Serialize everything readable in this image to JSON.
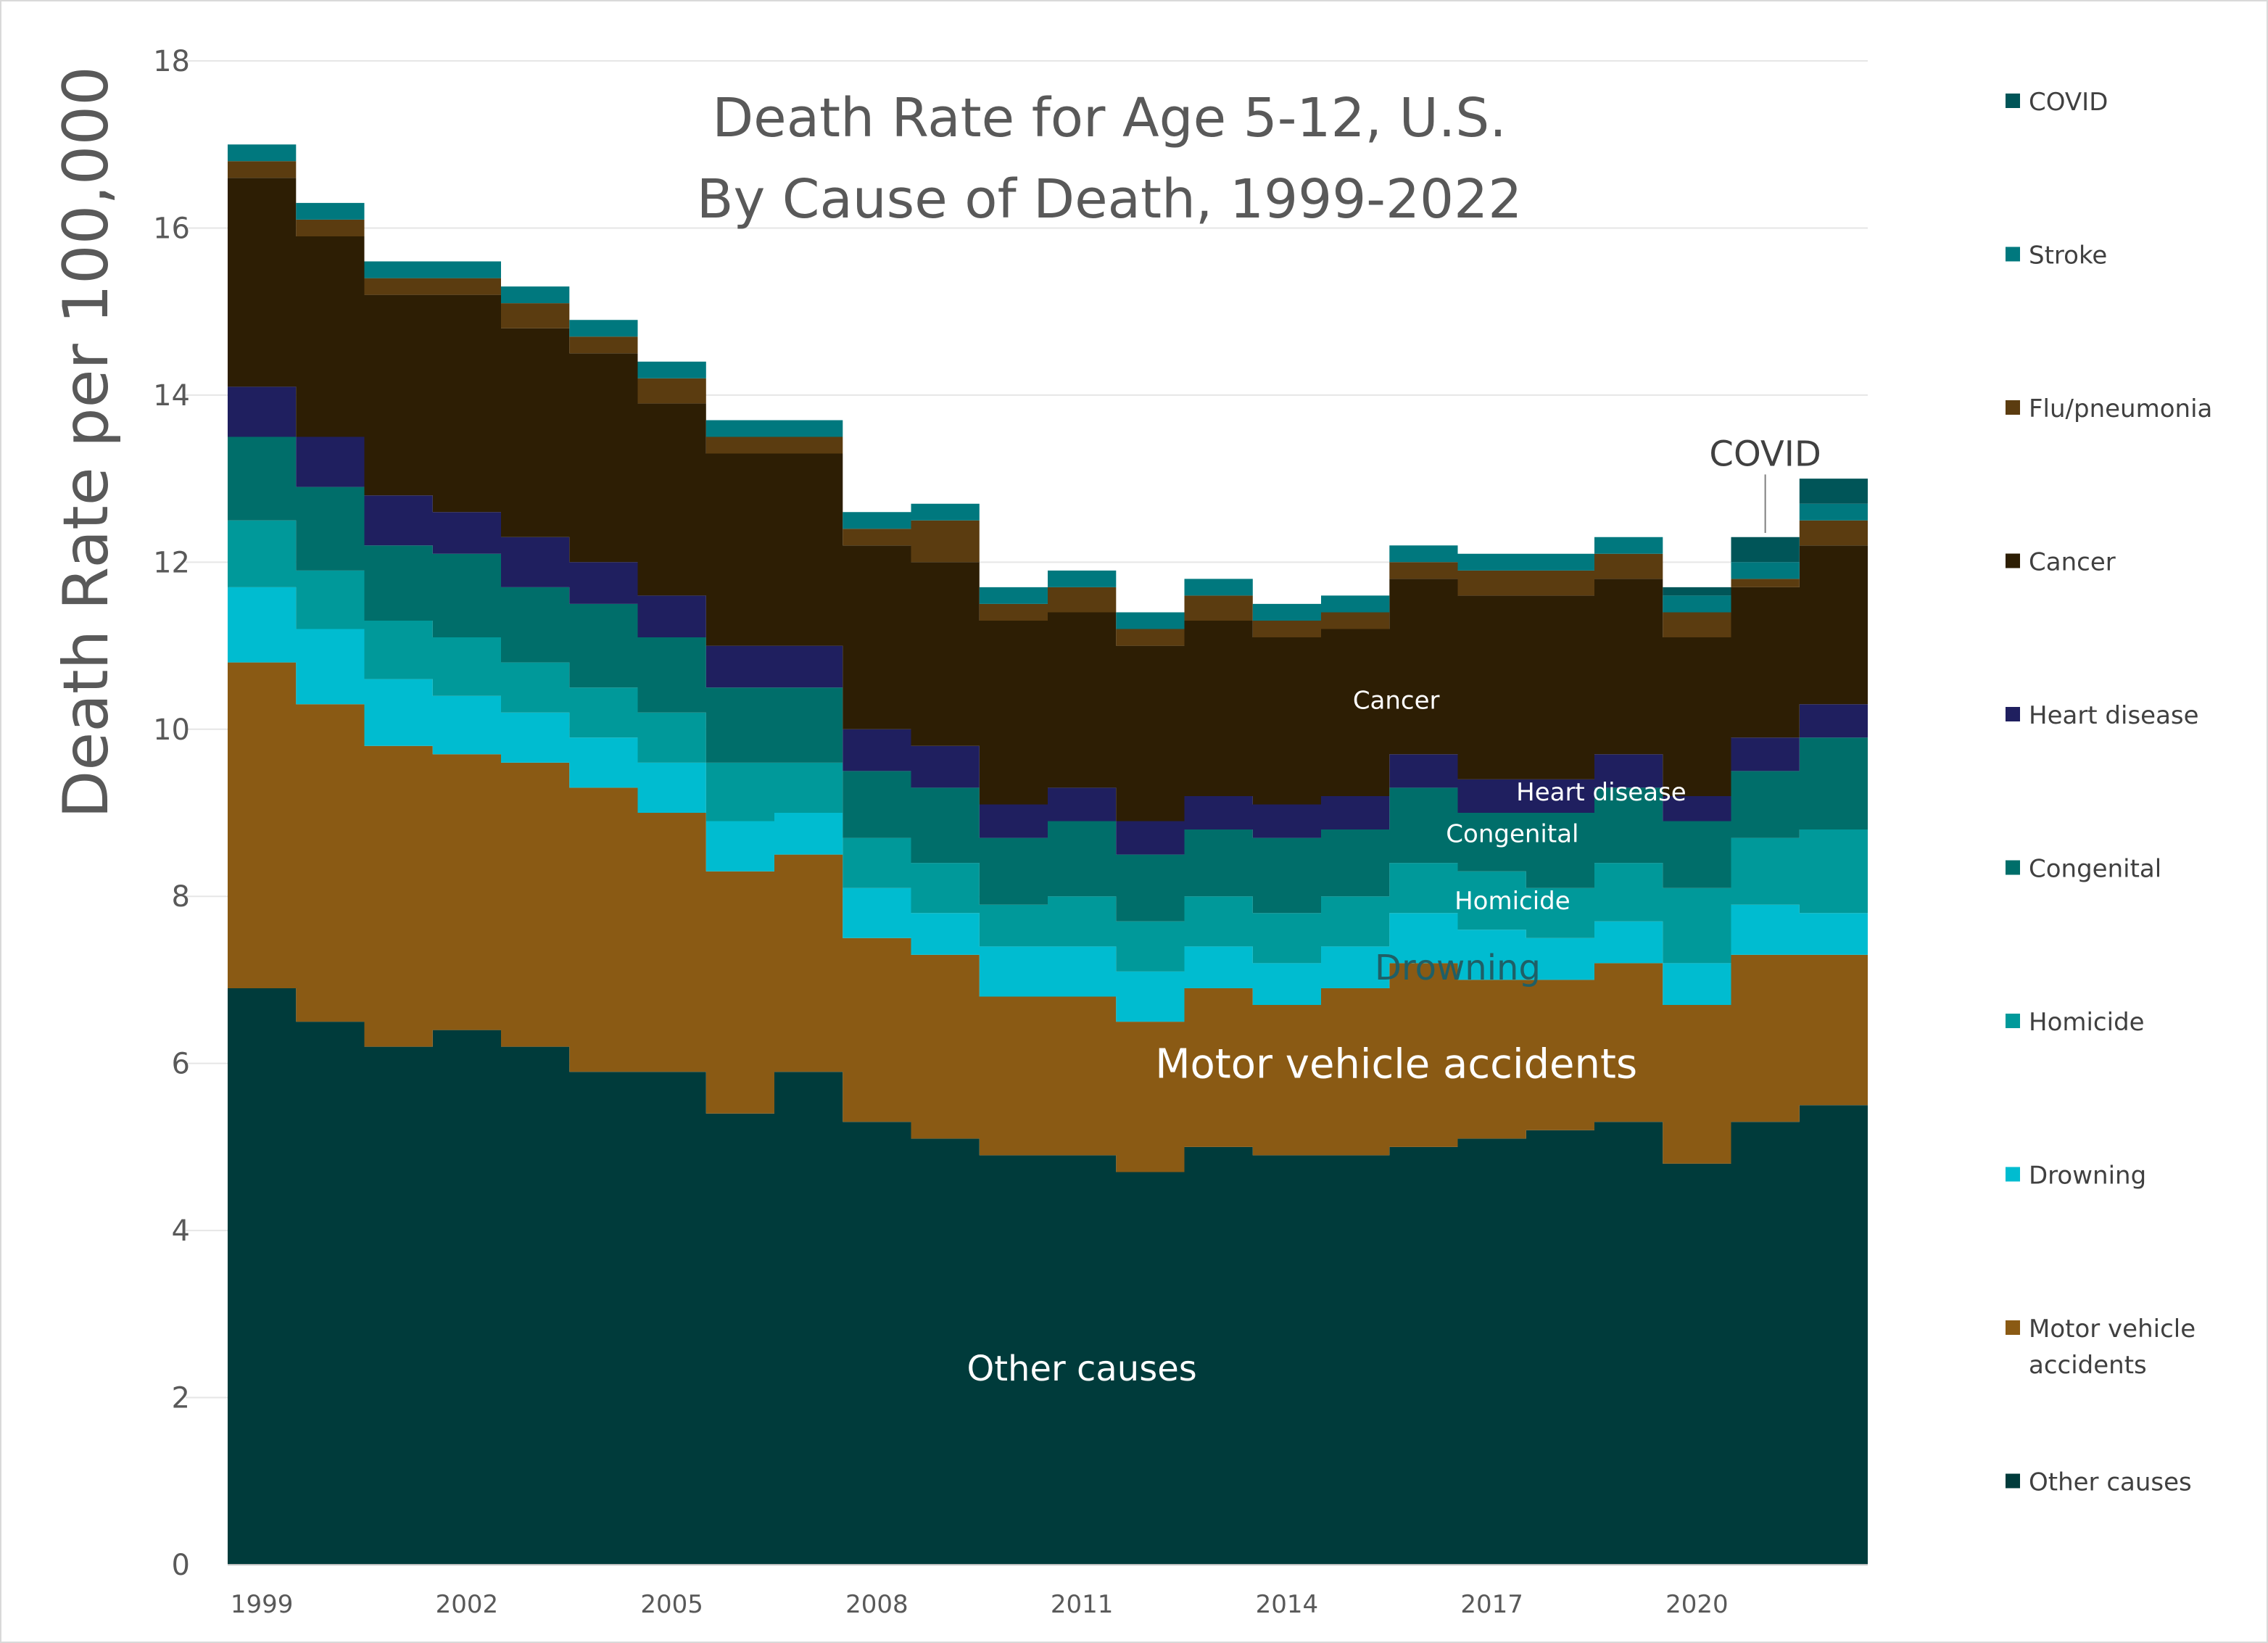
{
  "chart_data": {
    "type": "area",
    "stacked": true,
    "step": true,
    "title_lines": [
      "Death Rate for Age 5-12, U.S.",
      "By Cause of Death, 1999-2022"
    ],
    "ylabel": "Death Rate per 100,000",
    "xlabel": "",
    "ylim": [
      0,
      18
    ],
    "y_ticks": [
      "0",
      "2",
      "4",
      "6",
      "8",
      "10",
      "12",
      "14",
      "16",
      "18"
    ],
    "x_tick_labels": [
      "1999",
      "2002",
      "2005",
      "2008",
      "2011",
      "2014",
      "2017",
      "2020"
    ],
    "x": [
      1999,
      2000,
      2001,
      2002,
      2003,
      2004,
      2005,
      2006,
      2007,
      2008,
      2009,
      2010,
      2011,
      2012,
      2013,
      2014,
      2015,
      2016,
      2017,
      2018,
      2019,
      2020,
      2021,
      2022
    ],
    "grid": true,
    "legend_position": "right",
    "series": [
      {
        "name": "Other causes",
        "key": "other",
        "color": "#003b3b",
        "values": [
          6.9,
          6.5,
          6.2,
          6.4,
          6.2,
          5.9,
          5.9,
          5.4,
          5.9,
          5.3,
          5.1,
          4.9,
          4.9,
          4.7,
          5.0,
          4.9,
          4.9,
          5.0,
          5.1,
          5.2,
          5.3,
          4.8,
          5.3,
          5.5
        ]
      },
      {
        "name": "Motor vehicle accidents",
        "key": "mva",
        "color": "#8a5a14",
        "values": [
          3.9,
          3.8,
          3.6,
          3.3,
          3.4,
          3.4,
          3.1,
          2.9,
          2.6,
          2.2,
          2.2,
          1.9,
          1.9,
          1.8,
          1.9,
          1.8,
          2.0,
          2.2,
          1.9,
          1.8,
          1.9,
          1.9,
          2.0,
          1.8
        ]
      },
      {
        "name": "Drowning",
        "key": "drowning",
        "color": "#00bcd0",
        "values": [
          0.9,
          0.9,
          0.8,
          0.7,
          0.6,
          0.6,
          0.6,
          0.6,
          0.5,
          0.6,
          0.5,
          0.6,
          0.6,
          0.6,
          0.5,
          0.5,
          0.5,
          0.6,
          0.6,
          0.5,
          0.5,
          0.5,
          0.6,
          0.5
        ]
      },
      {
        "name": "Homicide",
        "key": "homicide",
        "color": "#00999a",
        "values": [
          0.8,
          0.7,
          0.7,
          0.7,
          0.6,
          0.6,
          0.6,
          0.7,
          0.6,
          0.6,
          0.6,
          0.5,
          0.6,
          0.6,
          0.6,
          0.6,
          0.6,
          0.6,
          0.7,
          0.6,
          0.7,
          0.9,
          0.8,
          1.0
        ]
      },
      {
        "name": "Congenital",
        "key": "congenital",
        "color": "#006e6a",
        "values": [
          1.0,
          1.0,
          0.9,
          1.0,
          0.9,
          1.0,
          0.9,
          0.9,
          0.9,
          0.8,
          0.9,
          0.8,
          0.9,
          0.8,
          0.8,
          0.9,
          0.8,
          0.9,
          0.7,
          0.9,
          0.9,
          0.8,
          0.8,
          1.1
        ]
      },
      {
        "name": "Heart disease",
        "key": "heart",
        "color": "#1f1f5f",
        "values": [
          0.6,
          0.6,
          0.6,
          0.5,
          0.6,
          0.5,
          0.5,
          0.5,
          0.5,
          0.5,
          0.5,
          0.4,
          0.4,
          0.4,
          0.4,
          0.4,
          0.4,
          0.4,
          0.4,
          0.4,
          0.4,
          0.3,
          0.4,
          0.4
        ]
      },
      {
        "name": "Cancer",
        "key": "cancer",
        "color": "#2d1e04",
        "values": [
          2.5,
          2.4,
          2.4,
          2.6,
          2.5,
          2.5,
          2.3,
          2.3,
          2.3,
          2.2,
          2.2,
          2.2,
          2.1,
          2.1,
          2.1,
          2.0,
          2.0,
          2.1,
          2.2,
          2.2,
          2.1,
          1.9,
          1.8,
          1.9
        ]
      },
      {
        "name": "Flu/pneumonia",
        "key": "flu",
        "color": "#5b3c10",
        "values": [
          0.2,
          0.2,
          0.2,
          0.2,
          0.3,
          0.2,
          0.3,
          0.2,
          0.2,
          0.2,
          0.5,
          0.2,
          0.3,
          0.2,
          0.3,
          0.2,
          0.2,
          0.2,
          0.3,
          0.3,
          0.3,
          0.3,
          0.1,
          0.3
        ]
      },
      {
        "name": "Stroke",
        "key": "stroke",
        "color": "#00787e",
        "values": [
          0.2,
          0.2,
          0.2,
          0.2,
          0.2,
          0.2,
          0.2,
          0.2,
          0.2,
          0.2,
          0.2,
          0.2,
          0.2,
          0.2,
          0.2,
          0.2,
          0.2,
          0.2,
          0.2,
          0.2,
          0.2,
          0.2,
          0.2,
          0.2
        ]
      },
      {
        "name": "COVID",
        "key": "covid",
        "color": "#005558",
        "values": [
          0,
          0,
          0,
          0,
          0,
          0,
          0,
          0,
          0,
          0,
          0,
          0,
          0,
          0,
          0,
          0,
          0,
          0,
          0,
          0,
          0,
          0.1,
          0.3,
          0.3
        ]
      }
    ],
    "legend_entries": [
      {
        "label_lines": [
          "COVID"
        ],
        "color": "#005558"
      },
      {
        "label_lines": [
          "Stroke"
        ],
        "color": "#00787e"
      },
      {
        "label_lines": [
          "Flu/pneumonia"
        ],
        "color": "#5b3c10"
      },
      {
        "label_lines": [
          "Cancer"
        ],
        "color": "#2d1e04"
      },
      {
        "label_lines": [
          "Heart disease"
        ],
        "color": "#1f1f5f"
      },
      {
        "label_lines": [
          "Congenital"
        ],
        "color": "#006e6a"
      },
      {
        "label_lines": [
          "Homicide"
        ],
        "color": "#00999a"
      },
      {
        "label_lines": [
          "Drowning"
        ],
        "color": "#00bcd0"
      },
      {
        "label_lines": [
          "Motor vehicle",
          "accidents"
        ],
        "color": "#8a5a14"
      },
      {
        "label_lines": [
          "Other causes"
        ],
        "color": "#003b3b"
      }
    ],
    "annotations": [
      {
        "text": "Other causes",
        "at_year": 2011.5,
        "at_value": 2.35,
        "color": "#ffffff",
        "size": "large"
      },
      {
        "text": "Motor vehicle accidents",
        "at_year": 2016.1,
        "at_value": 6.0,
        "color": "#ffffff",
        "size": "xlarge"
      },
      {
        "text": "Drowning",
        "at_year": 2017.0,
        "at_value": 7.15,
        "color": "#1f5f66",
        "size": "large"
      },
      {
        "text": "Homicide",
        "at_year": 2017.8,
        "at_value": 7.95,
        "color": "#ffffff",
        "size": "small"
      },
      {
        "text": "Congenital",
        "at_year": 2017.8,
        "at_value": 8.75,
        "color": "#ffffff",
        "size": "small"
      },
      {
        "text": "Heart disease",
        "at_year": 2019.1,
        "at_value": 9.25,
        "color": "#ffffff",
        "size": "small"
      },
      {
        "text": "Cancer",
        "at_year": 2016.1,
        "at_value": 10.35,
        "color": "#ffffff",
        "size": "small"
      },
      {
        "text": "COVID",
        "at_year": 2021.5,
        "at_value": 13.3,
        "color": "#404040",
        "size": "large",
        "leader_from_value": 13.05,
        "leader_to_value": 12.35,
        "leader_year": 2021.0
      }
    ],
    "colors": {
      "grid": "#e6e6e6",
      "axis": "#bfbfbf",
      "tick_text": "#595959",
      "legend_text": "#404040",
      "background": "#ffffff"
    }
  }
}
